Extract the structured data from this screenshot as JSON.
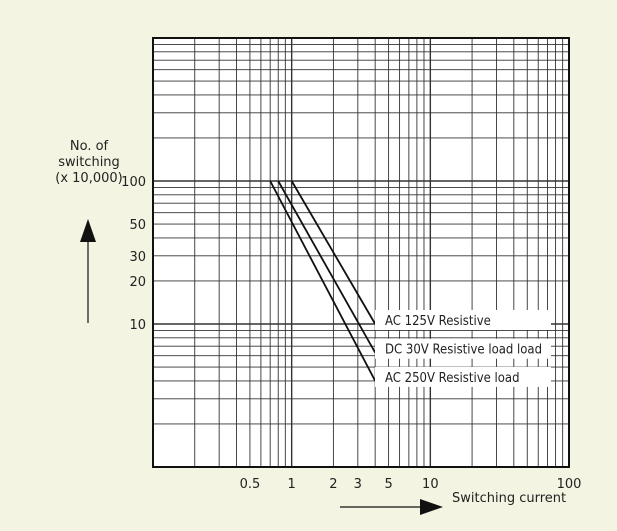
{
  "chart_data": {
    "type": "line",
    "xscale": "log",
    "yscale": "log",
    "xlim": [
      0.1,
      100
    ],
    "ylim": [
      1,
      1000
    ],
    "grid": true,
    "ylabel": [
      "No. of",
      "switching",
      "(x 10,000)"
    ],
    "xlabel": "Switching current",
    "xticks": [
      {
        "value": 0.5,
        "label": "0.5"
      },
      {
        "value": 1,
        "label": "1"
      },
      {
        "value": 2,
        "label": "2"
      },
      {
        "value": 3,
        "label": "3"
      },
      {
        "value": 5,
        "label": "5"
      },
      {
        "value": 10,
        "label": "10"
      },
      {
        "value": 100,
        "label": "100"
      }
    ],
    "yticks": [
      {
        "value": 10,
        "label": "10"
      },
      {
        "value": 20,
        "label": "20"
      },
      {
        "value": 30,
        "label": "30"
      },
      {
        "value": 50,
        "label": "50"
      },
      {
        "value": 100,
        "label": "100"
      }
    ],
    "series": [
      {
        "name": "AC 125V Resistive",
        "x": [
          1.0,
          4.0
        ],
        "y": [
          100,
          10
        ]
      },
      {
        "name": "DC 30V Resistive load load",
        "x": [
          0.8,
          4.0
        ],
        "y": [
          100,
          6.3
        ]
      },
      {
        "name": "AC 250V Resistive load",
        "x": [
          0.7,
          4.0
        ],
        "y": [
          100,
          4.0
        ]
      }
    ]
  }
}
